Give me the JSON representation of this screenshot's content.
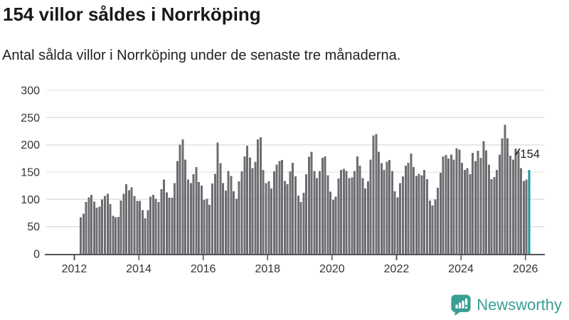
{
  "header": {
    "title": "154 villor såldes i Norrköping",
    "subtitle": "Antal sålda villor i Norrköping under de senaste tre månaderna."
  },
  "chart_data": {
    "type": "bar",
    "title": "154 villor såldes i Norrköping",
    "xlabel": "",
    "ylabel": "",
    "ylim": [
      0,
      300
    ],
    "grid": "horizontal",
    "y_ticks": [
      0,
      50,
      100,
      150,
      200,
      250,
      300
    ],
    "x_tick_labels": [
      "2012",
      "2014",
      "2016",
      "2018",
      "2020",
      "2022",
      "2024",
      "2026"
    ],
    "x_start": "2012-03",
    "frequency": "monthly-rolling-3-month-total",
    "values": [
      67,
      74,
      95,
      104,
      108,
      96,
      85,
      87,
      100,
      106,
      110,
      91,
      70,
      67,
      68,
      98,
      110,
      128,
      117,
      122,
      106,
      97,
      97,
      80,
      65,
      80,
      105,
      108,
      101,
      95,
      119,
      136,
      113,
      103,
      103,
      130,
      170,
      200,
      210,
      173,
      136,
      130,
      146,
      159,
      132,
      125,
      99,
      101,
      90,
      129,
      147,
      204,
      166,
      130,
      116,
      152,
      143,
      115,
      101,
      133,
      151,
      179,
      198,
      177,
      157,
      169,
      210,
      214,
      154,
      130,
      133,
      120,
      151,
      164,
      170,
      172,
      134,
      128,
      151,
      167,
      142,
      107,
      95,
      112,
      146,
      178,
      187,
      152,
      139,
      152,
      176,
      179,
      144,
      114,
      99,
      105,
      138,
      154,
      156,
      152,
      139,
      140,
      152,
      179,
      162,
      139,
      120,
      133,
      173,
      217,
      220,
      187,
      166,
      154,
      169,
      172,
      152,
      115,
      104,
      130,
      142,
      162,
      167,
      184,
      159,
      143,
      147,
      144,
      154,
      137,
      98,
      89,
      100,
      121,
      149,
      179,
      181,
      175,
      182,
      173,
      194,
      191,
      167,
      154,
      157,
      146,
      185,
      170,
      189,
      176,
      207,
      190,
      164,
      137,
      141,
      154,
      182,
      212,
      237,
      212,
      180,
      173,
      193,
      188,
      157,
      134,
      136,
      154
    ],
    "highlight": {
      "index": 167,
      "value": 154,
      "label": "154"
    },
    "colors": {
      "bar": "#6c6d71",
      "highlight": "#17999e",
      "grid": "#e2e2e2",
      "axis": "#54565a",
      "tick_label": "#333333",
      "annotation": "#222222"
    }
  },
  "footer": {
    "brand": "Newsworthy",
    "brand_color": "#3a9e93"
  }
}
